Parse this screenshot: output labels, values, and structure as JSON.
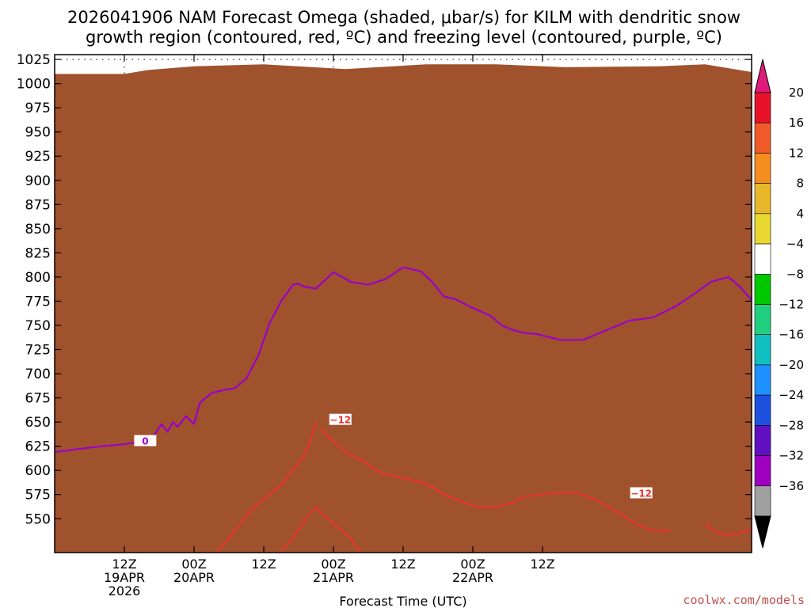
{
  "title": {
    "line1": "2026041906 NAM Forecast Omega (shaded, μbar/s) for KILM with dendritic snow",
    "line2": "growth region (contoured, red, ºC) and freezing level (contoured, purple, ºC)"
  },
  "credit": "coolwx.com/models",
  "chart_data": {
    "type": "heatmap",
    "xlabel": "Forecast Time (UTC)",
    "ylabel": "Pressure (mb)",
    "xlim": [
      0,
      60
    ],
    "ylim": [
      1030,
      515
    ],
    "y_axis_reversed": true,
    "y_ticks": [
      550,
      575,
      600,
      625,
      650,
      675,
      700,
      725,
      750,
      775,
      800,
      825,
      850,
      875,
      900,
      925,
      950,
      975,
      1000,
      1025
    ],
    "x_ticks": [
      {
        "hour": 6,
        "line1": "12Z",
        "line2": "19APR",
        "line3": "2026"
      },
      {
        "hour": 12,
        "line1": "00Z",
        "line2": "20APR",
        "line3": ""
      },
      {
        "hour": 18,
        "line1": "12Z",
        "line2": "",
        "line3": ""
      },
      {
        "hour": 24,
        "line1": "00Z",
        "line2": "21APR",
        "line3": ""
      },
      {
        "hour": 30,
        "line1": "12Z",
        "line2": "",
        "line3": ""
      },
      {
        "hour": 36,
        "line1": "00Z",
        "line2": "22APR",
        "line3": ""
      },
      {
        "hour": 42,
        "line1": "12Z",
        "line2": "",
        "line3": ""
      }
    ],
    "colorbar": {
      "labels": [
        "20",
        "16",
        "12",
        "8",
        "4",
        "−4",
        "−8",
        "−12",
        "−16",
        "−20",
        "−24",
        "−28",
        "−32",
        "−36"
      ],
      "colors": [
        "#e8122a",
        "#f15a28",
        "#f68d1f",
        "#e8b82a",
        "#e8d830",
        "#ffffff",
        "#00c800",
        "#20d080",
        "#10c0c0",
        "#1e90ff",
        "#1e50e0",
        "#6010c0",
        "#a000c0",
        "#a0a0a0"
      ],
      "top_color": "#e01a7a",
      "bottom_color": "#000000"
    },
    "shaded_regions": [
      {
        "level": "4",
        "color": "#e8d830",
        "points": [
          [
            19.7,
            516
          ],
          [
            21.6,
            516
          ],
          [
            24.2,
            520
          ],
          [
            24.0,
            540
          ],
          [
            22.7,
            570
          ],
          [
            21.5,
            610
          ],
          [
            20.5,
            630
          ],
          [
            19.6,
            570
          ]
        ]
      },
      {
        "level": "4",
        "color": "#e8d830",
        "points": [
          [
            22.6,
            518
          ],
          [
            24.4,
            518
          ],
          [
            22.8,
            580
          ],
          [
            22.4,
            560
          ]
        ]
      },
      {
        "level": "4",
        "color": "#e8d830",
        "points": [
          [
            25.7,
            518
          ],
          [
            26.7,
            518
          ],
          [
            26.3,
            570
          ],
          [
            25.7,
            575
          ],
          [
            25.4,
            540
          ]
        ]
      },
      {
        "level": "4",
        "color": "#e8d830",
        "points": [
          [
            8.6,
            950
          ],
          [
            9.9,
            946
          ],
          [
            10.2,
            900
          ],
          [
            10.3,
            850
          ],
          [
            9.7,
            795
          ],
          [
            9.0,
            870
          ],
          [
            8.3,
            930
          ]
        ]
      },
      {
        "level": "4",
        "color": "#e8d830",
        "points": [
          [
            1.0,
            787
          ],
          [
            1.2,
            820
          ],
          [
            1.1,
            860
          ],
          [
            0.9,
            820
          ]
        ]
      },
      {
        "level": "4",
        "color": "#e8d830",
        "points": [
          [
            7.3,
            830
          ],
          [
            7.5,
            860
          ],
          [
            7.3,
            870
          ]
        ]
      },
      {
        "level": "4",
        "color": "#e8d830",
        "points": [
          [
            35.2,
            675
          ],
          [
            37.0,
            675
          ],
          [
            37.1,
            740
          ],
          [
            37.8,
            800
          ],
          [
            38.2,
            850
          ],
          [
            37.7,
            852
          ],
          [
            37.1,
            815
          ],
          [
            35.5,
            795
          ],
          [
            35.2,
            760
          ]
        ]
      },
      {
        "level": "-4",
        "color": "#00c800",
        "points": [
          [
            8.9,
            516
          ],
          [
            9.9,
            516
          ],
          [
            9.7,
            620
          ],
          [
            9.9,
            660
          ],
          [
            9.7,
            700
          ],
          [
            9.2,
            650
          ],
          [
            9.0,
            600
          ]
        ]
      },
      {
        "level": "-4",
        "color": "#00c800",
        "points": [
          [
            7.9,
            543
          ],
          [
            8.1,
            560
          ],
          [
            8.0,
            595
          ],
          [
            7.8,
            560
          ]
        ]
      },
      {
        "level": "-4",
        "color": "#00c800",
        "points": [
          [
            6.6,
            845
          ],
          [
            7.1,
            875
          ],
          [
            7.1,
            940
          ],
          [
            6.8,
            955
          ],
          [
            6.6,
            925
          ]
        ]
      },
      {
        "level": "-4",
        "color": "#00c800",
        "points": [
          [
            24.0,
            658
          ],
          [
            24.5,
            690
          ],
          [
            24.6,
            740
          ],
          [
            25.4,
            775
          ],
          [
            25.9,
            760
          ],
          [
            26.2,
            790
          ],
          [
            26.4,
            820
          ],
          [
            26.3,
            870
          ],
          [
            25.2,
            960
          ],
          [
            24.2,
            995
          ],
          [
            23.2,
            990
          ],
          [
            22.0,
            985
          ],
          [
            20.0,
            980
          ],
          [
            19.8,
            950
          ],
          [
            19.8,
            890
          ],
          [
            20.4,
            820
          ],
          [
            21.1,
            770
          ],
          [
            21.8,
            730
          ],
          [
            22.4,
            700
          ],
          [
            23.0,
            720
          ],
          [
            23.5,
            670
          ]
        ]
      },
      {
        "level": "-4",
        "color": "#00c800",
        "points": [
          [
            34.6,
            883
          ],
          [
            35.5,
            895
          ],
          [
            36.0,
            920
          ],
          [
            36.6,
            950
          ],
          [
            36.8,
            985
          ],
          [
            36.2,
            994
          ],
          [
            35.5,
            985
          ],
          [
            34.7,
            950
          ],
          [
            34.0,
            935
          ],
          [
            33.9,
            905
          ]
        ]
      },
      {
        "level": "-4",
        "color": "#00c800",
        "points": [
          [
            41.0,
            762
          ],
          [
            41.4,
            765
          ],
          [
            41.4,
            795
          ],
          [
            41.0,
            795
          ]
        ]
      },
      {
        "level": "-4",
        "color": "#00c800",
        "points": [
          [
            59.9,
            935
          ],
          [
            60,
            935
          ],
          [
            60,
            970
          ],
          [
            59.9,
            970
          ]
        ]
      },
      {
        "level": "-8",
        "color": "#20d080",
        "points": [
          [
            9.1,
            516
          ],
          [
            9.6,
            516
          ],
          [
            9.5,
            600
          ],
          [
            9.3,
            600
          ]
        ]
      },
      {
        "level": "-8",
        "color": "#20d080",
        "points": [
          [
            23.8,
            700
          ],
          [
            24.3,
            720
          ],
          [
            24.6,
            790
          ],
          [
            25.0,
            830
          ],
          [
            24.8,
            900
          ],
          [
            24.2,
            970
          ],
          [
            23.3,
            985
          ],
          [
            21.5,
            975
          ],
          [
            21.0,
            930
          ],
          [
            21.2,
            860
          ],
          [
            21.8,
            800
          ],
          [
            22.8,
            760
          ],
          [
            23.2,
            730
          ]
        ]
      },
      {
        "level": "-8",
        "color": "#20d080",
        "points": [
          [
            35.0,
            925
          ],
          [
            35.5,
            950
          ],
          [
            35.3,
            960
          ],
          [
            34.9,
            945
          ]
        ]
      },
      {
        "level": "-12",
        "color": "#10c0c0",
        "points": [
          [
            24.0,
            720
          ],
          [
            24.3,
            800
          ],
          [
            24.4,
            880
          ],
          [
            24.0,
            950
          ],
          [
            23.4,
            960
          ],
          [
            22.6,
            945
          ],
          [
            22.6,
            890
          ],
          [
            23.0,
            830
          ],
          [
            23.6,
            760
          ]
        ]
      },
      {
        "level": "-16",
        "color": "#1e90ff",
        "points": [
          [
            23.9,
            780
          ],
          [
            24.1,
            830
          ],
          [
            24.0,
            890
          ],
          [
            23.8,
            900
          ],
          [
            23.6,
            850
          ],
          [
            23.7,
            800
          ]
        ]
      }
    ],
    "terrain_color": "#a0522d",
    "terrain": [
      [
        0,
        1010
      ],
      [
        6,
        1010
      ],
      [
        8,
        1014
      ],
      [
        12,
        1018
      ],
      [
        18,
        1020
      ],
      [
        25,
        1015
      ],
      [
        32,
        1020
      ],
      [
        38,
        1020
      ],
      [
        44,
        1017
      ],
      [
        52,
        1018
      ],
      [
        56,
        1020
      ],
      [
        60,
        1012
      ]
    ],
    "contours": [
      {
        "name": "dendritic-minus12-left",
        "color": "#e8342c",
        "label": "−12",
        "label_at": [
          24.6,
          652
        ],
        "points": [
          [
            14.0,
            516
          ],
          [
            15.0,
            530
          ],
          [
            16.0,
            545
          ],
          [
            17.0,
            560
          ],
          [
            18.5,
            575
          ],
          [
            19.5,
            585
          ],
          [
            20.5,
            600
          ],
          [
            21.5,
            615
          ],
          [
            22.0,
            630
          ],
          [
            22.5,
            650
          ]
        ]
      },
      {
        "name": "dendritic-minus12-right",
        "color": "#e8342c",
        "label": "−12",
        "label_at": [
          50.5,
          576
        ],
        "points": [
          [
            22.8,
            645
          ],
          [
            23.5,
            635
          ],
          [
            25.0,
            620
          ],
          [
            26.5,
            610
          ],
          [
            28.0,
            598
          ],
          [
            30.0,
            592
          ],
          [
            31.5,
            588
          ],
          [
            32.5,
            583
          ],
          [
            33.5,
            575
          ],
          [
            35.0,
            568
          ],
          [
            36.5,
            562
          ],
          [
            38.0,
            562
          ],
          [
            39.5,
            567
          ],
          [
            40.5,
            573
          ],
          [
            43.0,
            577
          ],
          [
            45.0,
            577
          ],
          [
            46.5,
            570
          ],
          [
            48.0,
            560
          ],
          [
            49.0,
            553
          ],
          [
            50.0,
            545
          ],
          [
            51.0,
            540
          ],
          [
            52.0,
            537
          ],
          [
            53.0,
            538
          ]
        ]
      },
      {
        "name": "dendritic-minus12-top",
        "color": "#e8342c",
        "label": "",
        "label_at": [],
        "points": [
          [
            19.5,
            516
          ],
          [
            20.5,
            530
          ],
          [
            21.5,
            548
          ],
          [
            22.0,
            556
          ],
          [
            22.5,
            562
          ],
          [
            23.5,
            550
          ],
          [
            24.5,
            540
          ],
          [
            25.5,
            530
          ],
          [
            26.0,
            520
          ],
          [
            26.5,
            516
          ]
        ]
      },
      {
        "name": "dendritic-minus12-upper-right",
        "color": "#e8342c",
        "label": "",
        "label_at": [],
        "points": [
          [
            56.0,
            545
          ],
          [
            57.0,
            536
          ],
          [
            58.0,
            533
          ],
          [
            59.0,
            535
          ],
          [
            60.0,
            540
          ]
        ]
      },
      {
        "name": "freezing-level-0",
        "color": "#9b00c8",
        "label": "0",
        "label_at": [
          7.8,
          630
        ],
        "points": [
          [
            0,
            619
          ],
          [
            2,
            622
          ],
          [
            4,
            625
          ],
          [
            6,
            627
          ],
          [
            7.5,
            630
          ],
          [
            8.5,
            635
          ],
          [
            9.2,
            648
          ],
          [
            9.7,
            640
          ],
          [
            10.2,
            650
          ],
          [
            10.6,
            645
          ],
          [
            11.3,
            656
          ],
          [
            12.0,
            648
          ],
          [
            12.5,
            670
          ],
          [
            13.5,
            680
          ],
          [
            14.5,
            683
          ],
          [
            15.5,
            685
          ],
          [
            16.5,
            695
          ],
          [
            17.5,
            718
          ],
          [
            18.5,
            752
          ],
          [
            19.5,
            775
          ],
          [
            20.5,
            792
          ],
          [
            21.0,
            793
          ],
          [
            21.5,
            790
          ],
          [
            22.5,
            788
          ],
          [
            24.0,
            805
          ],
          [
            25.5,
            795
          ],
          [
            27.0,
            792
          ],
          [
            28.5,
            798
          ],
          [
            30.0,
            810
          ],
          [
            31.5,
            806
          ],
          [
            32.5,
            795
          ],
          [
            33.5,
            780
          ],
          [
            34.5,
            777
          ],
          [
            36.0,
            768
          ],
          [
            37.5,
            760
          ],
          [
            38.5,
            750
          ],
          [
            39.5,
            745
          ],
          [
            40.5,
            742
          ],
          [
            41.5,
            741
          ],
          [
            43.5,
            735
          ],
          [
            45.5,
            735
          ],
          [
            47.5,
            745
          ],
          [
            49.5,
            755
          ],
          [
            51.5,
            758
          ],
          [
            53.5,
            770
          ],
          [
            55.0,
            782
          ],
          [
            56.5,
            795
          ],
          [
            58.0,
            800
          ],
          [
            59.0,
            790
          ],
          [
            60.0,
            776
          ]
        ]
      }
    ]
  }
}
